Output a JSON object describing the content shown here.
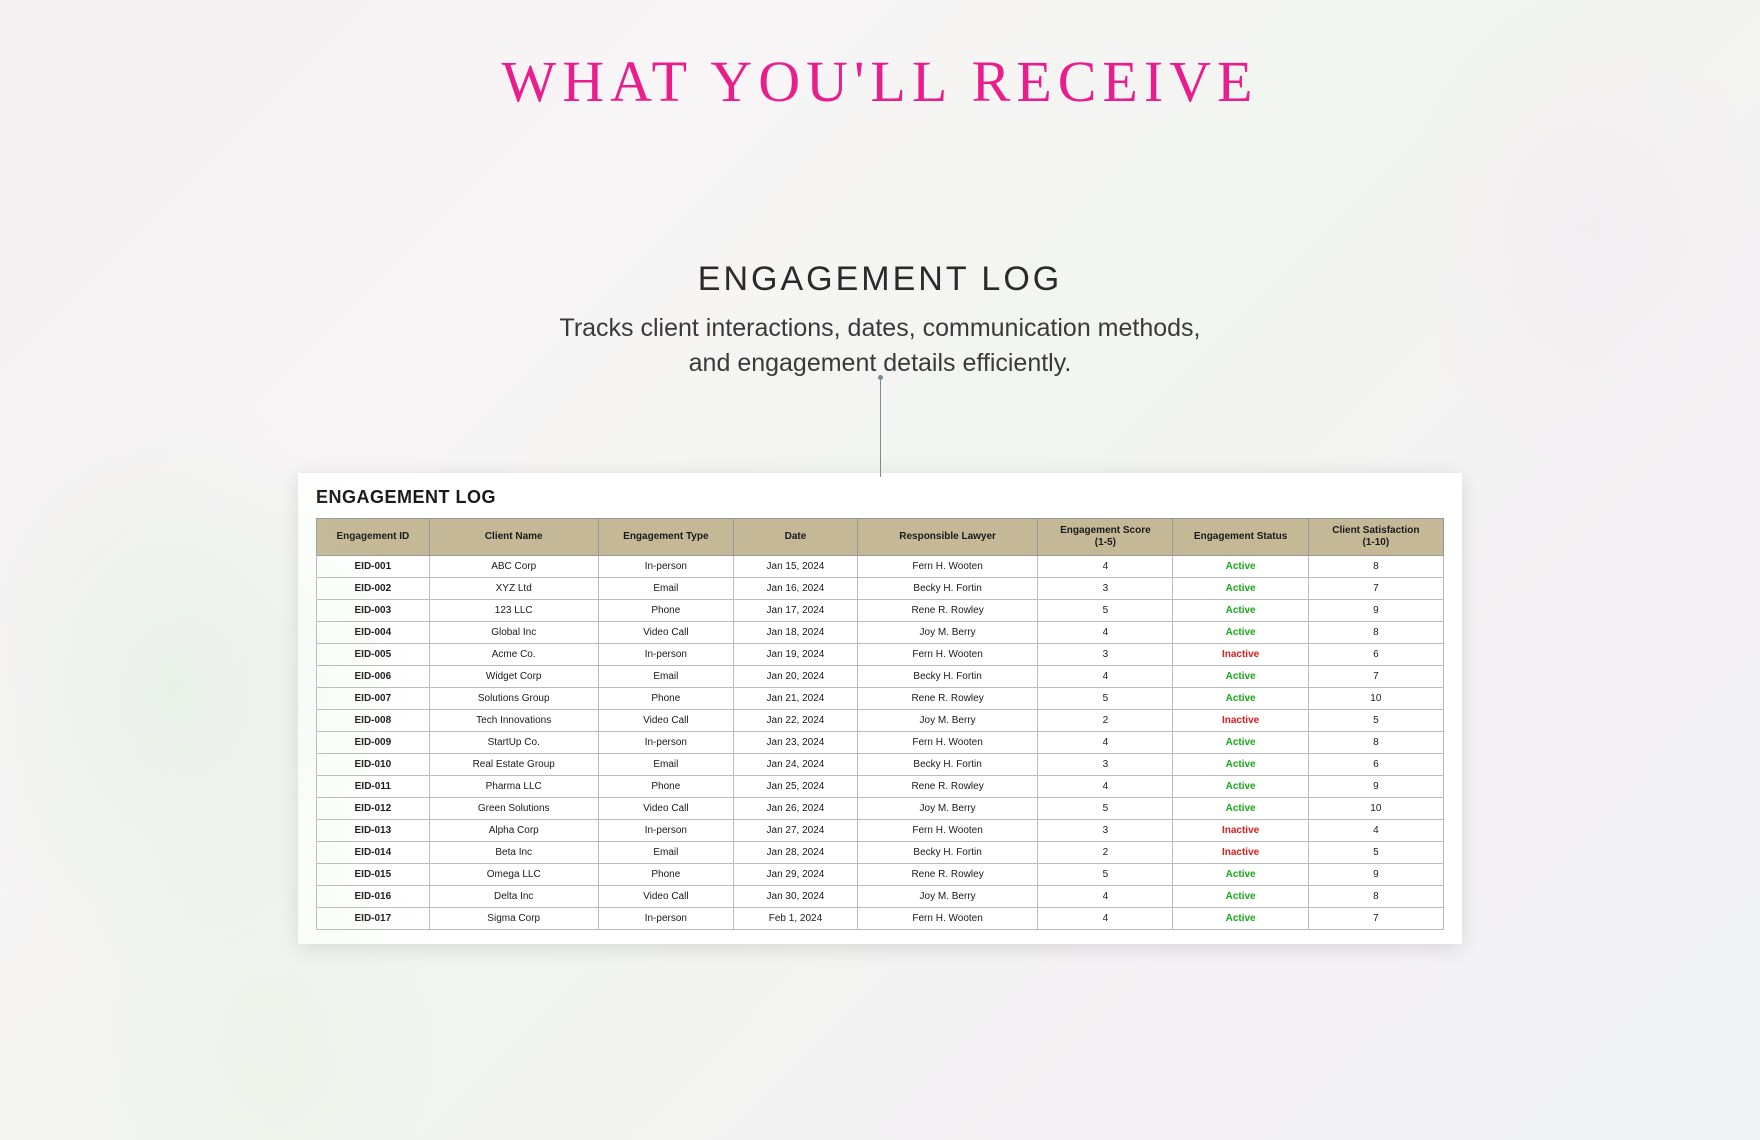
{
  "page": {
    "main_title": "WHAT YOU'LL RECEIVE",
    "section_title": "ENGAGEMENT LOG",
    "section_desc_line1": "Tracks client interactions, dates, communication methods,",
    "section_desc_line2": "and engagement details efficiently."
  },
  "table": {
    "title": "ENGAGEMENT LOG",
    "header_bg": "#c4b896",
    "border_color": "#bbbbbb",
    "active_color": "#1ba81b",
    "inactive_color": "#d91c1c",
    "columns": [
      "Engagement ID",
      "Client Name",
      "Engagement Type",
      "Date",
      "Responsible Lawyer",
      "Engagement Score (1-5)",
      "Engagement Status",
      "Client Satisfaction (1-10)"
    ],
    "rows": [
      {
        "id": "EID-001",
        "client": "ABC Corp",
        "type": "In-person",
        "date": "Jan 15, 2024",
        "lawyer": "Fern H. Wooten",
        "score": "4",
        "status": "Active",
        "sat": "8"
      },
      {
        "id": "EID-002",
        "client": "XYZ Ltd",
        "type": "Email",
        "date": "Jan 16, 2024",
        "lawyer": "Becky H. Fortin",
        "score": "3",
        "status": "Active",
        "sat": "7"
      },
      {
        "id": "EID-003",
        "client": "123 LLC",
        "type": "Phone",
        "date": "Jan 17, 2024",
        "lawyer": "Rene R. Rowley",
        "score": "5",
        "status": "Active",
        "sat": "9"
      },
      {
        "id": "EID-004",
        "client": "Global Inc",
        "type": "Video Call",
        "date": "Jan 18, 2024",
        "lawyer": "Joy M. Berry",
        "score": "4",
        "status": "Active",
        "sat": "8"
      },
      {
        "id": "EID-005",
        "client": "Acme Co.",
        "type": "In-person",
        "date": "Jan 19, 2024",
        "lawyer": "Fern H. Wooten",
        "score": "3",
        "status": "Inactive",
        "sat": "6"
      },
      {
        "id": "EID-006",
        "client": "Widget Corp",
        "type": "Email",
        "date": "Jan 20, 2024",
        "lawyer": "Becky H. Fortin",
        "score": "4",
        "status": "Active",
        "sat": "7"
      },
      {
        "id": "EID-007",
        "client": "Solutions Group",
        "type": "Phone",
        "date": "Jan 21, 2024",
        "lawyer": "Rene R. Rowley",
        "score": "5",
        "status": "Active",
        "sat": "10"
      },
      {
        "id": "EID-008",
        "client": "Tech Innovations",
        "type": "Video Call",
        "date": "Jan 22, 2024",
        "lawyer": "Joy M. Berry",
        "score": "2",
        "status": "Inactive",
        "sat": "5"
      },
      {
        "id": "EID-009",
        "client": "StartUp Co.",
        "type": "In-person",
        "date": "Jan 23, 2024",
        "lawyer": "Fern H. Wooten",
        "score": "4",
        "status": "Active",
        "sat": "8"
      },
      {
        "id": "EID-010",
        "client": "Real Estate Group",
        "type": "Email",
        "date": "Jan 24, 2024",
        "lawyer": "Becky H. Fortin",
        "score": "3",
        "status": "Active",
        "sat": "6"
      },
      {
        "id": "EID-011",
        "client": "Pharma LLC",
        "type": "Phone",
        "date": "Jan 25, 2024",
        "lawyer": "Rene R. Rowley",
        "score": "4",
        "status": "Active",
        "sat": "9"
      },
      {
        "id": "EID-012",
        "client": "Green Solutions",
        "type": "Video Call",
        "date": "Jan 26, 2024",
        "lawyer": "Joy M. Berry",
        "score": "5",
        "status": "Active",
        "sat": "10"
      },
      {
        "id": "EID-013",
        "client": "Alpha Corp",
        "type": "In-person",
        "date": "Jan 27, 2024",
        "lawyer": "Fern H. Wooten",
        "score": "3",
        "status": "Inactive",
        "sat": "4"
      },
      {
        "id": "EID-014",
        "client": "Beta Inc",
        "type": "Email",
        "date": "Jan 28, 2024",
        "lawyer": "Becky H. Fortin",
        "score": "2",
        "status": "Inactive",
        "sat": "5"
      },
      {
        "id": "EID-015",
        "client": "Omega LLC",
        "type": "Phone",
        "date": "Jan 29, 2024",
        "lawyer": "Rene R. Rowley",
        "score": "5",
        "status": "Active",
        "sat": "9"
      },
      {
        "id": "EID-016",
        "client": "Delta Inc",
        "type": "Video Call",
        "date": "Jan 30, 2024",
        "lawyer": "Joy M. Berry",
        "score": "4",
        "status": "Active",
        "sat": "8"
      },
      {
        "id": "EID-017",
        "client": "Sigma Corp",
        "type": "In-person",
        "date": "Feb 1, 2024",
        "lawyer": "Fern H. Wooten",
        "score": "4",
        "status": "Active",
        "sat": "7"
      }
    ]
  },
  "colors": {
    "title_pink": "#e91e8c",
    "text_dark": "#2a2a2a",
    "bg_gradient_start": "#f5f0f2",
    "bg_gradient_end": "#f0f3f5"
  }
}
